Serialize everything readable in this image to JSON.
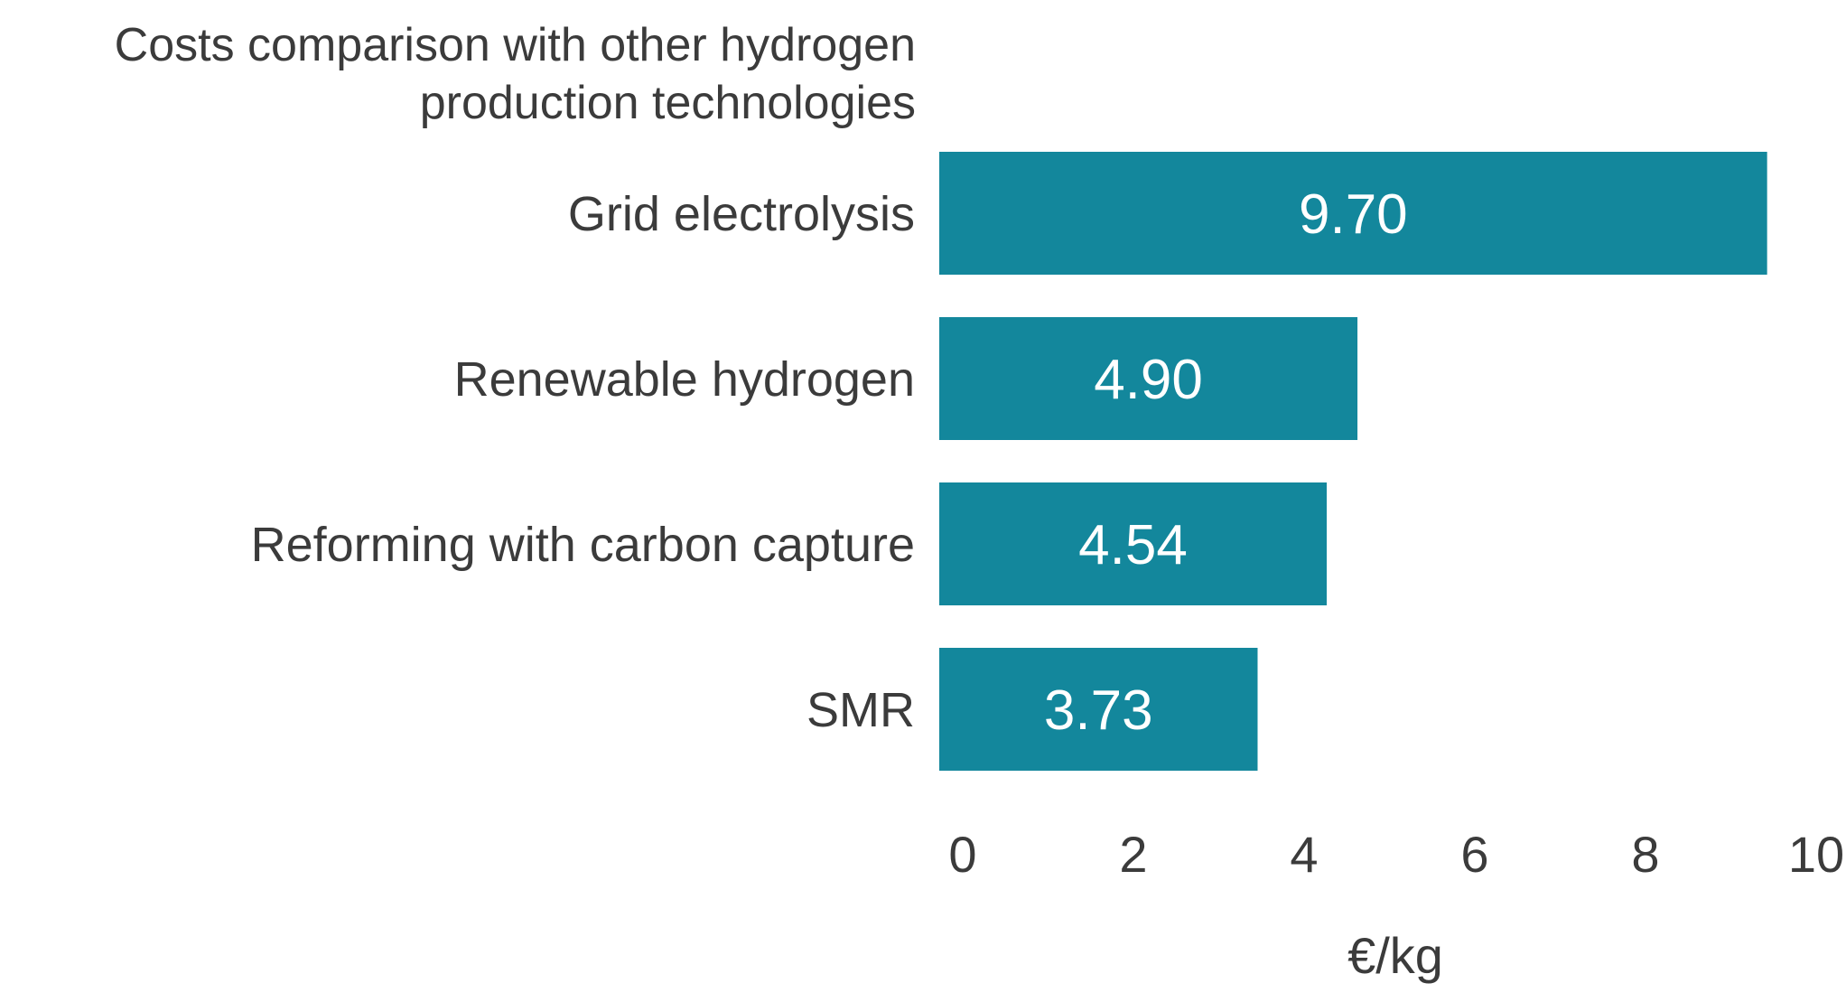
{
  "chart_data": {
    "type": "bar",
    "orientation": "horizontal",
    "title_lines": [
      "Costs comparison with other hydrogen",
      "production technologies"
    ],
    "categories": [
      "Grid electrolysis",
      "Renewable hydrogen",
      "Reforming with carbon capture",
      "SMR"
    ],
    "values": [
      9.7,
      4.9,
      4.54,
      3.73
    ],
    "value_labels": [
      "9.70",
      "4.90",
      "4.54",
      "3.73"
    ],
    "xlabel": "€/kg",
    "ylabel": "",
    "xlim": [
      0,
      10
    ],
    "xticks": [
      0,
      2,
      4,
      6,
      8,
      10
    ],
    "tick_labels": [
      "0",
      "2",
      "4",
      "6",
      "8",
      "10"
    ],
    "grid": false,
    "bar_color": "#13879c"
  }
}
